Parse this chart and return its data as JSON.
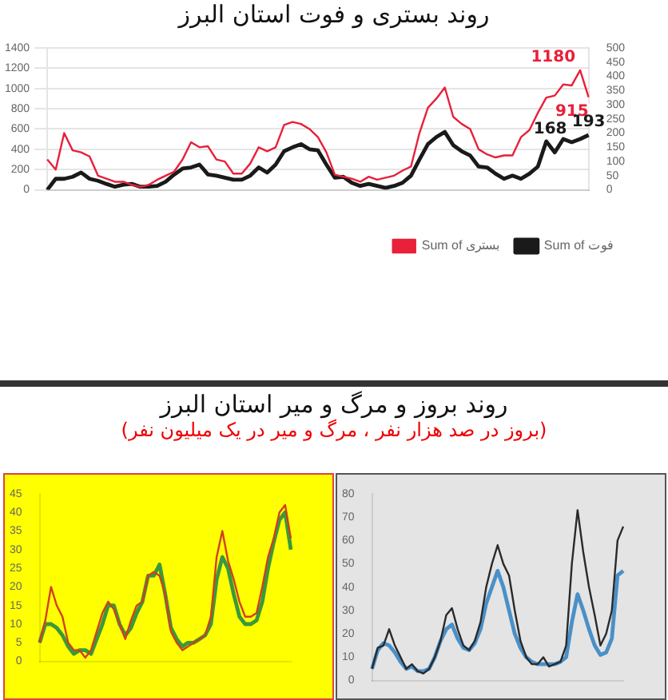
{
  "chart_data": [
    {
      "type": "line",
      "title": "روند بستری و فوت استان البرز",
      "categories": [
        null,
        null,
        null,
        null,
        null,
        null,
        null,
        null,
        null,
        null,
        null,
        null,
        null,
        null,
        null,
        null,
        null,
        null,
        null,
        null,
        null,
        null,
        null,
        null,
        null,
        null,
        null,
        null,
        null,
        null,
        null,
        null,
        null,
        null,
        null,
        null,
        null,
        null,
        null,
        null,
        null,
        null,
        null,
        null,
        null,
        null,
        null,
        null,
        null,
        null,
        null,
        null,
        null,
        null,
        null,
        null,
        null,
        null,
        null,
        null,
        null,
        null,
        null,
        null,
        null
      ],
      "ylim": [
        0,
        1400
      ],
      "yticks": [
        0,
        200,
        400,
        600,
        800,
        1000,
        1200,
        1400
      ],
      "y2lim": [
        0,
        500
      ],
      "y2ticks": [
        0,
        50,
        100,
        150,
        200,
        250,
        300,
        350,
        400,
        450,
        500
      ],
      "legend": "bottom right",
      "grid": "y",
      "series": [
        {
          "name": "Sum of بستری",
          "color": "#e8203a",
          "values": [
            300,
            200,
            560,
            390,
            370,
            330,
            140,
            110,
            80,
            80,
            50,
            30,
            50,
            100,
            140,
            180,
            300,
            470,
            420,
            430,
            300,
            280,
            160,
            160,
            260,
            420,
            380,
            420,
            640,
            670,
            650,
            600,
            520,
            370,
            150,
            130,
            110,
            80,
            130,
            100,
            120,
            140,
            190,
            230,
            560,
            810,
            900,
            1010,
            720,
            650,
            600,
            400,
            350,
            320,
            340,
            340,
            520,
            590,
            760,
            910,
            930,
            1040,
            1030,
            1180,
            915
          ],
          "value_labels": [
            null,
            null,
            null,
            null,
            null,
            null,
            null,
            null,
            null,
            null,
            null,
            null,
            null,
            null,
            null,
            null,
            null,
            null,
            null,
            null,
            null,
            null,
            null,
            null,
            null,
            null,
            null,
            null,
            null,
            null,
            null,
            null,
            null,
            null,
            null,
            null,
            null,
            null,
            null,
            null,
            null,
            null,
            null,
            null,
            null,
            null,
            null,
            null,
            null,
            null,
            null,
            null,
            null,
            null,
            null,
            null,
            null,
            null,
            null,
            null,
            null,
            null,
            null,
            "1180",
            "915"
          ]
        },
        {
          "name": "Sum of فوت",
          "color": "#1a1a1a",
          "axis": "y2",
          "values": [
            0,
            39,
            39,
            46,
            61,
            39,
            32,
            21,
            11,
            18,
            21,
            11,
            11,
            14,
            29,
            54,
            75,
            79,
            89,
            54,
            50,
            43,
            36,
            36,
            50,
            79,
            61,
            89,
            136,
            150,
            161,
            143,
            139,
            89,
            43,
            46,
            25,
            14,
            21,
            14,
            7,
            14,
            25,
            50,
            107,
            161,
            186,
            204,
            157,
            136,
            121,
            82,
            79,
            57,
            39,
            50,
            39,
            57,
            82,
            171,
            132,
            179,
            168,
            179,
            193
          ],
          "value_labels": [
            null,
            null,
            null,
            null,
            null,
            null,
            null,
            null,
            null,
            null,
            null,
            null,
            null,
            null,
            null,
            null,
            null,
            null,
            null,
            null,
            null,
            null,
            null,
            null,
            null,
            null,
            null,
            null,
            null,
            null,
            null,
            null,
            null,
            null,
            null,
            null,
            null,
            null,
            null,
            null,
            null,
            null,
            null,
            null,
            null,
            null,
            null,
            null,
            null,
            null,
            null,
            null,
            null,
            null,
            null,
            null,
            null,
            null,
            null,
            null,
            null,
            null,
            "168",
            null,
            "193"
          ]
        }
      ]
    },
    {
      "type": "line",
      "title": "روند بروز و مرگ و میر استان البرز",
      "subtitle": "(بروز در صد هزار نفر ، مرگ و میر در یک میلیون نفر)",
      "categories": [
        null,
        null,
        null,
        null,
        null,
        null,
        null,
        null,
        null,
        null,
        null,
        null,
        null,
        null,
        null,
        null,
        null,
        null,
        null,
        null,
        null,
        null,
        null,
        null,
        null,
        null,
        null,
        null,
        null,
        null,
        null,
        null,
        null,
        null,
        null,
        null,
        null,
        null,
        null,
        null,
        null,
        null,
        null,
        null,
        null
      ],
      "ylim": [
        0,
        45
      ],
      "yticks": [
        0,
        5,
        10,
        15,
        20,
        25,
        30,
        35,
        40,
        45
      ],
      "series": [
        {
          "color": "#d04020",
          "values": [
            5,
            11,
            20,
            15,
            12,
            5,
            3,
            3,
            1,
            3,
            8,
            13,
            16,
            14,
            10,
            6,
            11,
            15,
            16,
            23,
            24,
            23,
            18,
            8,
            5,
            3,
            4,
            5,
            6,
            7,
            12,
            28,
            35,
            27,
            22,
            16,
            12,
            12,
            13,
            20,
            28,
            33,
            40,
            42,
            33
          ]
        },
        {
          "color": "#3a9a3a",
          "values": [
            5,
            10,
            10,
            9,
            7,
            4,
            2,
            3,
            3,
            2,
            6,
            10,
            15,
            15,
            10,
            7,
            9,
            13,
            16,
            23,
            23,
            26,
            18,
            9,
            6,
            4,
            5,
            5,
            6,
            7,
            10,
            22,
            28,
            25,
            18,
            12,
            10,
            10,
            11,
            16,
            25,
            32,
            38,
            40,
            30
          ]
        }
      ]
    },
    {
      "type": "line",
      "categories": [
        null,
        null,
        null,
        null,
        null,
        null,
        null,
        null,
        null,
        null,
        null,
        null,
        null,
        null,
        null,
        null,
        null,
        null,
        null,
        null,
        null,
        null,
        null,
        null,
        null,
        null,
        null,
        null,
        null,
        null,
        null,
        null,
        null,
        null,
        null,
        null,
        null,
        null,
        null,
        null,
        null,
        null,
        null,
        null,
        null
      ],
      "ylim": [
        0,
        80
      ],
      "yticks": [
        0,
        10,
        20,
        30,
        40,
        50,
        60,
        70,
        80
      ],
      "series": [
        {
          "color": "#2a2a2a",
          "values": [
            5,
            14,
            15,
            22,
            15,
            10,
            5,
            7,
            4,
            3,
            5,
            10,
            17,
            28,
            31,
            22,
            15,
            13,
            17,
            25,
            40,
            50,
            58,
            50,
            45,
            30,
            17,
            10,
            7,
            7,
            10,
            6,
            7,
            8,
            15,
            50,
            73,
            55,
            40,
            28,
            15,
            20,
            30,
            60,
            66
          ]
        },
        {
          "color": "#4a90c8",
          "values": [
            5,
            13,
            16,
            15,
            12,
            8,
            5,
            6,
            4,
            4,
            5,
            10,
            17,
            22,
            24,
            18,
            14,
            13,
            16,
            22,
            33,
            40,
            47,
            40,
            30,
            20,
            14,
            10,
            8,
            7,
            7,
            7,
            7,
            8,
            10,
            25,
            37,
            30,
            22,
            15,
            11,
            12,
            18,
            45,
            47
          ]
        }
      ]
    }
  ]
}
